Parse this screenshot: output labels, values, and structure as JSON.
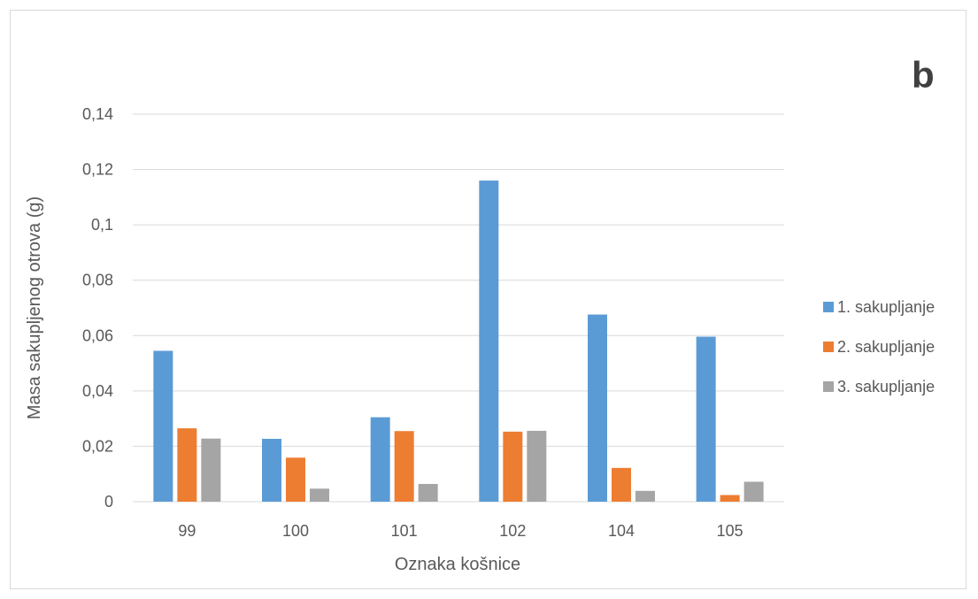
{
  "panel_label": "b",
  "chart_data": {
    "type": "bar",
    "title": "",
    "xlabel": "Oznaka košnice",
    "ylabel": "Masa sakupljenog otrova (g)",
    "categories": [
      "99",
      "100",
      "101",
      "102",
      "104",
      "105"
    ],
    "ylim": [
      0,
      0.14
    ],
    "yticks": [
      0,
      0.02,
      0.04,
      0.06,
      0.08,
      0.1,
      0.12,
      0.14
    ],
    "ytick_labels": [
      "0",
      "0,02",
      "0,04",
      "0,06",
      "0,08",
      "0,1",
      "0,12",
      "0,14"
    ],
    "grid": true,
    "legend_position": "right",
    "series": [
      {
        "name": "1. sakupljanje",
        "color": "#5b9bd5",
        "values": [
          0.0545,
          0.0227,
          0.0305,
          0.116,
          0.0676,
          0.0596
        ]
      },
      {
        "name": "2. sakupljanje",
        "color": "#ed7d31",
        "values": [
          0.0265,
          0.0159,
          0.0255,
          0.0253,
          0.0122,
          0.0024
        ]
      },
      {
        "name": "3. sakupljanje",
        "color": "#a5a5a5",
        "values": [
          0.0228,
          0.0047,
          0.0064,
          0.0256,
          0.0039,
          0.0072
        ]
      }
    ]
  }
}
